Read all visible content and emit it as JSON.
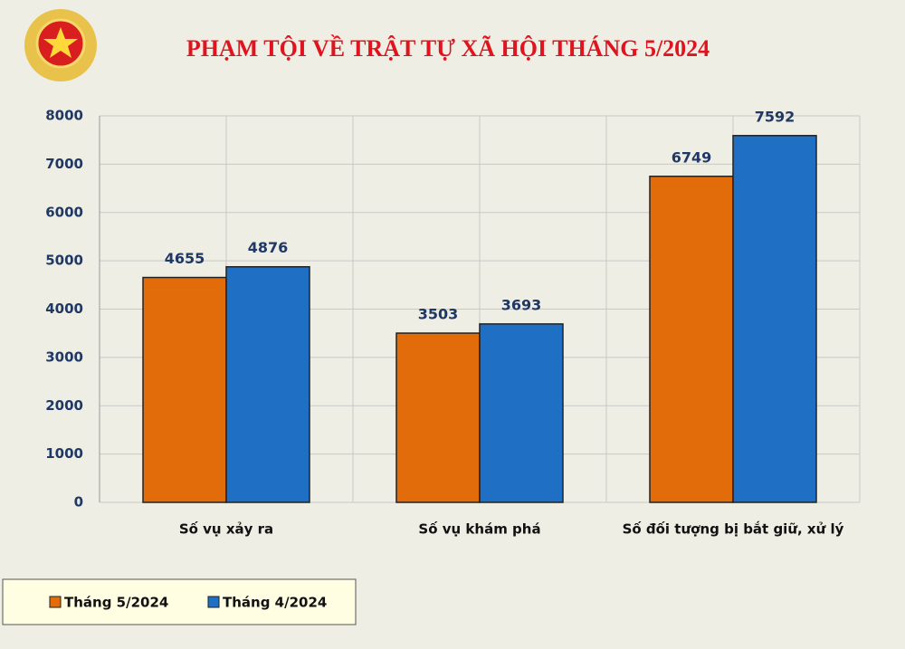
{
  "chart_data": {
    "type": "bar",
    "title": "PHẠM TỘI VỀ TRẬT TỰ XÃ HỘI THÁNG 5/2024",
    "categories": [
      "Số vụ xảy ra",
      "Số vụ khám phá",
      "Số đối tượng bị bắt giữ, xử lý"
    ],
    "series": [
      {
        "name": "Tháng 5/2024",
        "color": "#e36c0a",
        "values": [
          4655,
          3503,
          6749
        ]
      },
      {
        "name": "Tháng 4/2024",
        "color": "#1f6fc4",
        "values": [
          4876,
          3693,
          7592
        ]
      }
    ],
    "ylim": [
      0,
      8000
    ],
    "yticks": [
      0,
      1000,
      2000,
      3000,
      4000,
      5000,
      6000,
      7000,
      8000
    ],
    "grid": true,
    "legend": "bottom-left"
  }
}
